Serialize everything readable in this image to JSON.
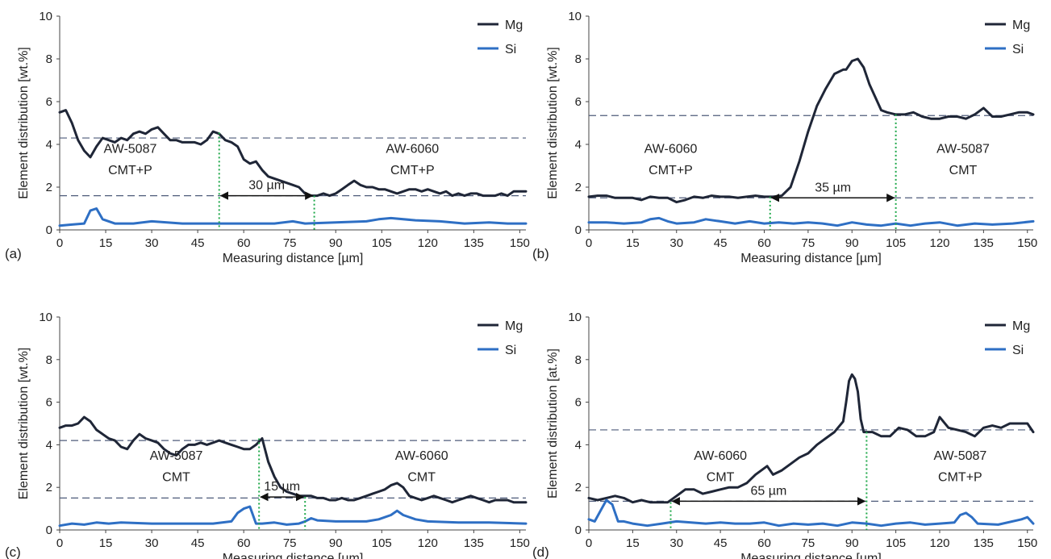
{
  "colors": {
    "mg": "#1f2637",
    "si": "#2e6fc4",
    "dashed": "#4e5b7a",
    "dotted": "#1fa84a",
    "arrow": "#111111"
  },
  "chart_data": [
    {
      "panel": "(a)",
      "type": "line",
      "xlabel": "Measuring distance [µm]",
      "ylabel": "Element distribution [wt.%]",
      "xlim": [
        0,
        152
      ],
      "ylim": [
        0,
        10
      ],
      "yticks": [
        0,
        2,
        4,
        6,
        8,
        10
      ],
      "xticks": [
        0,
        15,
        30,
        45,
        60,
        75,
        90,
        105,
        120,
        135,
        150
      ],
      "legend": [
        "Mg",
        "Si"
      ],
      "legend_position": "top-right",
      "series": [
        {
          "name": "Mg",
          "x": [
            0,
            2,
            4,
            6,
            8,
            10,
            12,
            14,
            16,
            18,
            20,
            22,
            24,
            26,
            28,
            30,
            32,
            34,
            36,
            38,
            40,
            42,
            44,
            46,
            48,
            50,
            52,
            54,
            56,
            58,
            60,
            62,
            64,
            66,
            68,
            70,
            72,
            74,
            76,
            78,
            80,
            82,
            84,
            86,
            88,
            90,
            92,
            94,
            96,
            98,
            100,
            102,
            104,
            106,
            108,
            110,
            112,
            114,
            116,
            118,
            120,
            122,
            124,
            126,
            128,
            130,
            132,
            134,
            136,
            138,
            140,
            142,
            144,
            146,
            148,
            150,
            152
          ],
          "y": [
            5.5,
            5.6,
            5.0,
            4.2,
            3.7,
            3.4,
            3.9,
            4.3,
            4.2,
            4.1,
            4.3,
            4.2,
            4.5,
            4.6,
            4.5,
            4.7,
            4.8,
            4.5,
            4.2,
            4.2,
            4.1,
            4.1,
            4.1,
            4.0,
            4.2,
            4.6,
            4.5,
            4.2,
            4.1,
            3.9,
            3.3,
            3.1,
            3.2,
            2.8,
            2.5,
            2.4,
            2.3,
            2.2,
            2.1,
            2.0,
            1.7,
            1.6,
            1.6,
            1.7,
            1.6,
            1.7,
            1.9,
            2.1,
            2.3,
            2.1,
            2.0,
            2.0,
            1.9,
            1.9,
            1.8,
            1.7,
            1.8,
            1.9,
            1.9,
            1.8,
            1.9,
            1.8,
            1.7,
            1.8,
            1.6,
            1.7,
            1.6,
            1.7,
            1.7,
            1.6,
            1.6,
            1.6,
            1.7,
            1.6,
            1.8,
            1.8,
            1.8
          ]
        },
        {
          "name": "Si",
          "x": [
            0,
            4,
            8,
            10,
            12,
            14,
            18,
            24,
            30,
            40,
            50,
            60,
            70,
            76,
            80,
            90,
            100,
            104,
            108,
            116,
            124,
            132,
            140,
            146,
            152
          ],
          "y": [
            0.2,
            0.25,
            0.3,
            0.9,
            1.0,
            0.5,
            0.3,
            0.3,
            0.4,
            0.3,
            0.3,
            0.3,
            0.3,
            0.4,
            0.3,
            0.35,
            0.4,
            0.5,
            0.55,
            0.45,
            0.4,
            0.3,
            0.35,
            0.3,
            0.3
          ]
        }
      ],
      "hlines": [
        4.3,
        1.6
      ],
      "vlines": [
        {
          "x": 52,
          "y": 4.55
        },
        {
          "x": 83,
          "y": 1.6
        }
      ],
      "arrow": {
        "x1": 52,
        "x2": 83,
        "y": 1.6,
        "label": "30 µm"
      },
      "texts": [
        {
          "t": "AW-5087",
          "x": 23,
          "y": 3.6
        },
        {
          "t": "CMT+P",
          "x": 23,
          "y": 2.6
        },
        {
          "t": "AW-6060",
          "x": 115,
          "y": 3.6
        },
        {
          "t": "CMT+P",
          "x": 115,
          "y": 2.6
        }
      ]
    },
    {
      "panel": "(b)",
      "type": "line",
      "xlabel": "Measuring distance [µm]",
      "ylabel": "Element distribution [wt.%]",
      "xlim": [
        0,
        152
      ],
      "ylim": [
        0,
        10
      ],
      "yticks": [
        0,
        2,
        4,
        6,
        8,
        10
      ],
      "xticks": [
        0,
        15,
        30,
        45,
        60,
        75,
        90,
        105,
        120,
        135,
        150
      ],
      "legend": [
        "Mg",
        "Si"
      ],
      "legend_position": "top-right",
      "series": [
        {
          "name": "Mg",
          "x": [
            0,
            3,
            6,
            9,
            12,
            15,
            18,
            21,
            24,
            27,
            30,
            33,
            36,
            39,
            42,
            45,
            48,
            51,
            54,
            57,
            60,
            63,
            66,
            69,
            72,
            75,
            78,
            81,
            84,
            87,
            88,
            90,
            92,
            94,
            96,
            98,
            100,
            102,
            105,
            108,
            111,
            114,
            117,
            120,
            123,
            126,
            129,
            132,
            135,
            138,
            141,
            144,
            147,
            150,
            152
          ],
          "y": [
            1.55,
            1.6,
            1.6,
            1.5,
            1.5,
            1.5,
            1.4,
            1.55,
            1.5,
            1.5,
            1.3,
            1.4,
            1.55,
            1.5,
            1.6,
            1.55,
            1.55,
            1.5,
            1.55,
            1.6,
            1.55,
            1.55,
            1.6,
            2.0,
            3.2,
            4.6,
            5.8,
            6.6,
            7.3,
            7.5,
            7.5,
            7.9,
            8.0,
            7.6,
            6.8,
            6.2,
            5.6,
            5.5,
            5.4,
            5.4,
            5.5,
            5.3,
            5.2,
            5.2,
            5.3,
            5.3,
            5.2,
            5.4,
            5.7,
            5.3,
            5.3,
            5.4,
            5.5,
            5.5,
            5.4
          ]
        },
        {
          "name": "Si",
          "x": [
            0,
            6,
            12,
            18,
            21,
            24,
            27,
            30,
            36,
            40,
            45,
            50,
            55,
            60,
            65,
            70,
            75,
            80,
            85,
            90,
            95,
            100,
            105,
            110,
            115,
            120,
            126,
            132,
            138,
            145,
            152
          ],
          "y": [
            0.35,
            0.35,
            0.3,
            0.35,
            0.5,
            0.55,
            0.4,
            0.3,
            0.35,
            0.5,
            0.4,
            0.3,
            0.4,
            0.3,
            0.35,
            0.3,
            0.35,
            0.3,
            0.2,
            0.35,
            0.25,
            0.2,
            0.3,
            0.2,
            0.3,
            0.35,
            0.2,
            0.3,
            0.25,
            0.3,
            0.4
          ]
        }
      ],
      "hlines": [
        5.35,
        1.5
      ],
      "vlines": [
        {
          "x": 62,
          "y": 1.55
        },
        {
          "x": 105,
          "y": 5.4
        }
      ],
      "arrow": {
        "x1": 62,
        "x2": 105,
        "y": 1.5,
        "label": "35 µm"
      },
      "texts": [
        {
          "t": "AW-6060",
          "x": 28,
          "y": 3.6
        },
        {
          "t": "CMT+P",
          "x": 28,
          "y": 2.6
        },
        {
          "t": "AW-5087",
          "x": 128,
          "y": 3.6
        },
        {
          "t": "CMT",
          "x": 128,
          "y": 2.6
        }
      ]
    },
    {
      "panel": "(c)",
      "type": "line",
      "xlabel": "Measuring distance [µm]",
      "ylabel": "Element distribution [wt.%]",
      "xlim": [
        0,
        152
      ],
      "ylim": [
        0,
        10
      ],
      "yticks": [
        0,
        2,
        4,
        6,
        8,
        10
      ],
      "xticks": [
        0,
        15,
        30,
        45,
        60,
        75,
        90,
        105,
        120,
        135,
        150
      ],
      "legend": [
        "Mg",
        "Si"
      ],
      "legend_position": "top-right",
      "series": [
        {
          "name": "Mg",
          "x": [
            0,
            2,
            4,
            6,
            8,
            10,
            12,
            14,
            16,
            18,
            20,
            22,
            24,
            26,
            28,
            30,
            32,
            34,
            36,
            38,
            40,
            42,
            44,
            46,
            48,
            50,
            52,
            54,
            56,
            58,
            60,
            62,
            64,
            66,
            68,
            70,
            72,
            74,
            76,
            78,
            80,
            82,
            84,
            86,
            88,
            90,
            92,
            94,
            96,
            98,
            100,
            102,
            104,
            106,
            108,
            110,
            112,
            114,
            116,
            118,
            120,
            122,
            124,
            126,
            128,
            130,
            132,
            134,
            136,
            138,
            140,
            142,
            144,
            146,
            148,
            150,
            152
          ],
          "y": [
            4.8,
            4.9,
            4.9,
            5.0,
            5.3,
            5.1,
            4.7,
            4.5,
            4.3,
            4.2,
            3.9,
            3.8,
            4.2,
            4.5,
            4.3,
            4.2,
            4.1,
            3.8,
            3.6,
            3.5,
            3.8,
            4.0,
            4.0,
            4.1,
            4.0,
            4.1,
            4.2,
            4.1,
            4.0,
            3.9,
            3.8,
            3.8,
            4.0,
            4.3,
            3.2,
            2.5,
            2.0,
            1.8,
            1.7,
            1.6,
            1.6,
            1.6,
            1.5,
            1.5,
            1.4,
            1.4,
            1.5,
            1.4,
            1.4,
            1.5,
            1.6,
            1.7,
            1.8,
            1.9,
            2.1,
            2.2,
            2.0,
            1.6,
            1.5,
            1.4,
            1.5,
            1.6,
            1.5,
            1.4,
            1.3,
            1.4,
            1.5,
            1.6,
            1.5,
            1.4,
            1.3,
            1.4,
            1.4,
            1.4,
            1.3,
            1.3,
            1.3
          ]
        },
        {
          "name": "Si",
          "x": [
            0,
            4,
            8,
            12,
            16,
            20,
            30,
            40,
            50,
            56,
            58,
            60,
            62,
            64,
            66,
            70,
            74,
            78,
            80,
            82,
            84,
            90,
            100,
            104,
            108,
            110,
            112,
            116,
            120,
            130,
            140,
            152
          ],
          "y": [
            0.2,
            0.3,
            0.25,
            0.35,
            0.3,
            0.35,
            0.3,
            0.3,
            0.3,
            0.4,
            0.8,
            1.0,
            1.1,
            0.3,
            0.3,
            0.35,
            0.25,
            0.3,
            0.4,
            0.55,
            0.45,
            0.4,
            0.4,
            0.5,
            0.7,
            0.9,
            0.7,
            0.5,
            0.4,
            0.35,
            0.35,
            0.3
          ]
        }
      ],
      "hlines": [
        4.2,
        1.5
      ],
      "vlines": [
        {
          "x": 65,
          "y": 4.3
        },
        {
          "x": 80,
          "y": 1.55
        }
      ],
      "arrow": {
        "x1": 65,
        "x2": 80,
        "y": 1.55,
        "label": "15 µm"
      },
      "texts": [
        {
          "t": "AW-5087",
          "x": 38,
          "y": 3.3
        },
        {
          "t": "CMT",
          "x": 38,
          "y": 2.3
        },
        {
          "t": "AW-6060",
          "x": 118,
          "y": 3.3
        },
        {
          "t": "CMT",
          "x": 118,
          "y": 2.3
        }
      ]
    },
    {
      "panel": "(d)",
      "type": "line",
      "xlabel": "Measuring distance [µm]",
      "ylabel": "Element distribution [at.%]",
      "xlim": [
        0,
        152
      ],
      "ylim": [
        0,
        10
      ],
      "yticks": [
        0,
        2,
        4,
        6,
        8,
        10
      ],
      "xticks": [
        0,
        15,
        30,
        45,
        60,
        75,
        90,
        105,
        120,
        135,
        150
      ],
      "legend": [
        "Mg",
        "Si"
      ],
      "legend_position": "top-right",
      "series": [
        {
          "name": "Mg",
          "x": [
            0,
            3,
            6,
            9,
            12,
            15,
            18,
            21,
            24,
            27,
            30,
            33,
            36,
            39,
            42,
            45,
            48,
            51,
            54,
            57,
            60,
            61,
            63,
            66,
            69,
            72,
            75,
            78,
            81,
            84,
            87,
            88,
            89,
            90,
            91,
            92,
            93,
            94,
            97,
            100,
            103,
            106,
            109,
            112,
            115,
            118,
            120,
            123,
            126,
            129,
            132,
            135,
            138,
            141,
            144,
            147,
            150,
            152
          ],
          "y": [
            1.5,
            1.4,
            1.5,
            1.6,
            1.5,
            1.3,
            1.4,
            1.3,
            1.3,
            1.3,
            1.6,
            1.9,
            1.9,
            1.7,
            1.8,
            1.9,
            2.0,
            2.0,
            2.2,
            2.6,
            2.9,
            3.0,
            2.6,
            2.8,
            3.1,
            3.4,
            3.6,
            4.0,
            4.3,
            4.6,
            5.1,
            6.0,
            7.0,
            7.3,
            7.1,
            6.5,
            5.2,
            4.6,
            4.6,
            4.4,
            4.4,
            4.8,
            4.7,
            4.4,
            4.4,
            4.6,
            5.3,
            4.8,
            4.7,
            4.6,
            4.4,
            4.8,
            4.9,
            4.8,
            5.0,
            5.0,
            5.0,
            4.6
          ]
        },
        {
          "name": "Si",
          "x": [
            0,
            2,
            4,
            6,
            8,
            10,
            12,
            15,
            20,
            25,
            30,
            35,
            40,
            45,
            50,
            55,
            60,
            65,
            70,
            75,
            80,
            85,
            90,
            95,
            100,
            105,
            110,
            115,
            120,
            125,
            127,
            129,
            131,
            133,
            140,
            148,
            150,
            152
          ],
          "y": [
            0.5,
            0.4,
            0.9,
            1.4,
            1.2,
            0.4,
            0.4,
            0.3,
            0.2,
            0.3,
            0.4,
            0.35,
            0.3,
            0.35,
            0.3,
            0.3,
            0.35,
            0.2,
            0.3,
            0.25,
            0.3,
            0.2,
            0.35,
            0.3,
            0.2,
            0.3,
            0.35,
            0.25,
            0.3,
            0.35,
            0.7,
            0.8,
            0.6,
            0.3,
            0.25,
            0.5,
            0.6,
            0.3
          ]
        }
      ],
      "hlines": [
        4.7,
        1.35
      ],
      "vlines": [
        {
          "x": 28,
          "y": 1.3
        },
        {
          "x": 95,
          "y": 4.6
        }
      ],
      "arrow": {
        "x1": 28,
        "x2": 95,
        "y": 1.35,
        "label": "65 µm"
      },
      "texts": [
        {
          "t": "AW-6060",
          "x": 45,
          "y": 3.3
        },
        {
          "t": "CMT",
          "x": 45,
          "y": 2.3
        },
        {
          "t": "AW-5087",
          "x": 127,
          "y": 3.3
        },
        {
          "t": "CMT+P",
          "x": 127,
          "y": 2.3
        }
      ]
    }
  ]
}
